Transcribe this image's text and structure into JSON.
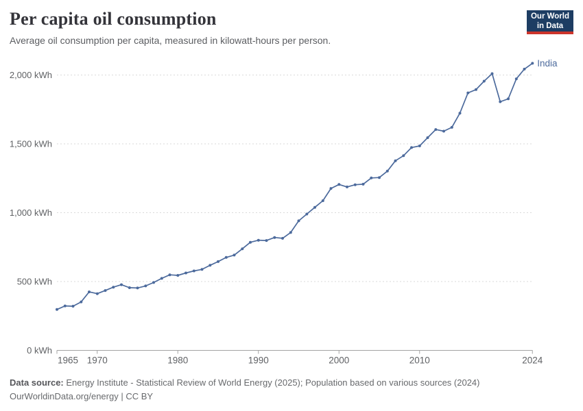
{
  "header": {
    "title": "Per capita oil consumption",
    "subtitle": "Average oil consumption per capita, measured in kilowatt-hours per person."
  },
  "logo": {
    "line1": "Our World",
    "line2": "in Data",
    "bg_color": "#1d3d63",
    "accent_color": "#cc342b"
  },
  "footer": {
    "datasource_label": "Data source:",
    "datasource_value": " Energy Institute - Statistical Review of World Energy (2025); Population based on various sources (2024)",
    "note": "OurWorldinData.org/energy | CC BY"
  },
  "chart_data": {
    "type": "line",
    "title": "Per capita oil consumption",
    "subtitle": "Average oil consumption per capita, measured in kilowatt-hours per person.",
    "unit": "kWh",
    "xlim": [
      1965,
      2024
    ],
    "ylim": [
      0,
      2100
    ],
    "grid": "horizontal-dashed",
    "grid_color": "#d9d9d9",
    "axis_color": "#a3a3a3",
    "tick_label_color": "#5f6164",
    "legend_position": "end-of-line",
    "yticks": [
      {
        "v": 0,
        "label": "0 kWh"
      },
      {
        "v": 500,
        "label": "500 kWh"
      },
      {
        "v": 1000,
        "label": "1,000 kWh"
      },
      {
        "v": 1500,
        "label": "1,500 kWh"
      },
      {
        "v": 2000,
        "label": "2,000 kWh"
      }
    ],
    "xticks": [
      1965,
      1970,
      1980,
      1990,
      2000,
      2010,
      2024
    ],
    "years_from": 1965,
    "series": [
      {
        "name": "India",
        "color": "#4C6A9C",
        "values": [
          297,
          323,
          321,
          352,
          425,
          412,
          435,
          459,
          477,
          455,
          453,
          468,
          493,
          523,
          549,
          545,
          562,
          577,
          588,
          618,
          645,
          675,
          692,
          738,
          785,
          800,
          798,
          820,
          814,
          856,
          941,
          990,
          1039,
          1087,
          1176,
          1205,
          1187,
          1203,
          1207,
          1252,
          1255,
          1302,
          1377,
          1414,
          1473,
          1485,
          1545,
          1604,
          1592,
          1620,
          1723,
          1870,
          1894,
          1955,
          2010,
          1806,
          1827,
          1972,
          2043,
          2085
        ]
      }
    ]
  }
}
